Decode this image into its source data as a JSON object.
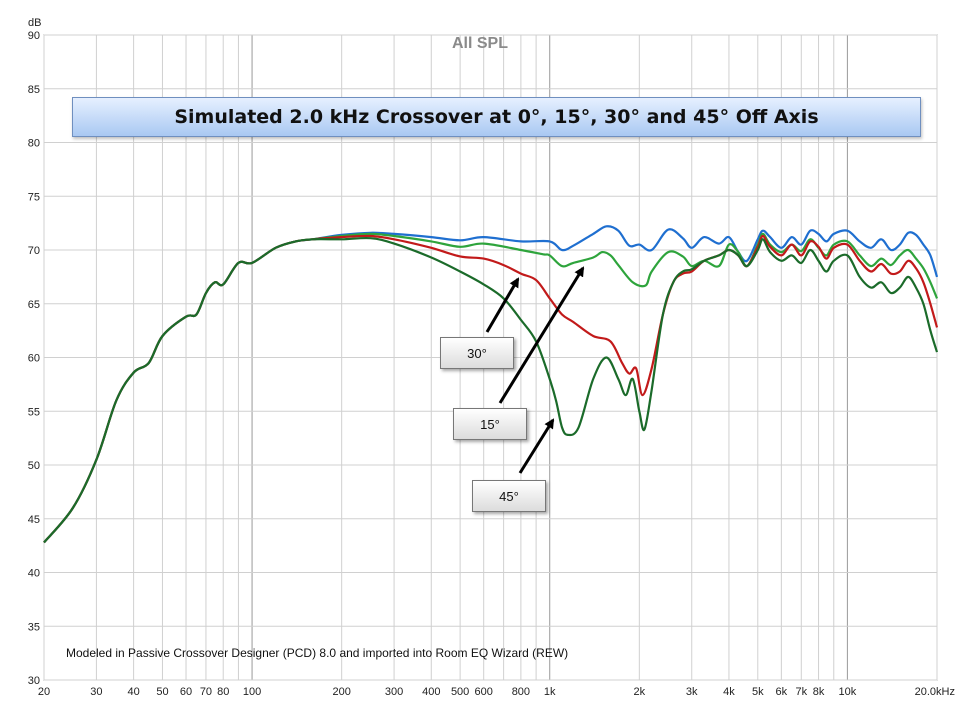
{
  "chart_data": {
    "type": "line",
    "title": "All SPL",
    "subtitle": "Simulated 2.0 kHz Crossover at 0°, 15°, 30° and 45° Off Axis",
    "ylabel": "dB",
    "xlabel": "",
    "xscale": "log",
    "xlim": [
      20,
      20000
    ],
    "ylim": [
      30,
      90
    ],
    "y_ticks": [
      "30",
      "35",
      "40",
      "45",
      "50",
      "55",
      "60",
      "65",
      "70",
      "75",
      "80",
      "85",
      "90"
    ],
    "x_ticks": [
      {
        "value": 20,
        "label": "20"
      },
      {
        "value": 30,
        "label": "30"
      },
      {
        "value": 40,
        "label": "40"
      },
      {
        "value": 50,
        "label": "50"
      },
      {
        "value": 60,
        "label": "60"
      },
      {
        "value": 70,
        "label": "70"
      },
      {
        "value": 80,
        "label": "80"
      },
      {
        "value": 100,
        "label": "100"
      },
      {
        "value": 200,
        "label": "200"
      },
      {
        "value": 300,
        "label": "300"
      },
      {
        "value": 400,
        "label": "400"
      },
      {
        "value": 500,
        "label": "500"
      },
      {
        "value": 600,
        "label": "600"
      },
      {
        "value": 800,
        "label": "800"
      },
      {
        "value": 1000,
        "label": "1k"
      },
      {
        "value": 2000,
        "label": "2k"
      },
      {
        "value": 3000,
        "label": "3k"
      },
      {
        "value": 4000,
        "label": "4k"
      },
      {
        "value": 5000,
        "label": "5k"
      },
      {
        "value": 6000,
        "label": "6k"
      },
      {
        "value": 7000,
        "label": "7k"
      },
      {
        "value": 8000,
        "label": "8k"
      },
      {
        "value": 10000,
        "label": "10k"
      },
      {
        "value": 20000,
        "label": "20.0kHz"
      }
    ],
    "grid": true,
    "annotations": [
      "30°",
      "15°",
      "45°"
    ],
    "footnote": "Modeled in Passive Crossover  Designer (PCD) 8.0 and imported into Room EQ Wizard (REW)",
    "series": [
      {
        "name": "0°",
        "color": "#1f6fd0",
        "points": [
          [
            20,
            42.8
          ],
          [
            25,
            46
          ],
          [
            30,
            50.5
          ],
          [
            35,
            56
          ],
          [
            40,
            58.6
          ],
          [
            45,
            59.5
          ],
          [
            50,
            62
          ],
          [
            60,
            63.8
          ],
          [
            65,
            64
          ],
          [
            70,
            66
          ],
          [
            75,
            67
          ],
          [
            80,
            66.8
          ],
          [
            90,
            68.8
          ],
          [
            100,
            68.8
          ],
          [
            120,
            70.2
          ],
          [
            140,
            70.8
          ],
          [
            160,
            71.0
          ],
          [
            200,
            71.4
          ],
          [
            250,
            71.6
          ],
          [
            300,
            71.5
          ],
          [
            400,
            71.2
          ],
          [
            500,
            70.9
          ],
          [
            600,
            71.2
          ],
          [
            800,
            70.8
          ],
          [
            1000,
            70.8
          ],
          [
            1100,
            70.0
          ],
          [
            1200,
            70.4
          ],
          [
            1400,
            71.5
          ],
          [
            1550,
            72.2
          ],
          [
            1700,
            71.8
          ],
          [
            1850,
            70.4
          ],
          [
            2000,
            70.5
          ],
          [
            2200,
            70.0
          ],
          [
            2500,
            71.9
          ],
          [
            2800,
            71.1
          ],
          [
            3000,
            70.2
          ],
          [
            3300,
            71.2
          ],
          [
            3700,
            70.6
          ],
          [
            4000,
            71.2
          ],
          [
            4300,
            69.8
          ],
          [
            4600,
            69.0
          ],
          [
            5000,
            71.0
          ],
          [
            5200,
            71.8
          ],
          [
            5500,
            71.2
          ],
          [
            6000,
            70.2
          ],
          [
            6500,
            71.2
          ],
          [
            7000,
            70.5
          ],
          [
            7500,
            71.8
          ],
          [
            8000,
            71.5
          ],
          [
            8500,
            70.8
          ],
          [
            9000,
            71.5
          ],
          [
            10000,
            71.8
          ],
          [
            11000,
            70.8
          ],
          [
            12000,
            70.2
          ],
          [
            13000,
            71.0
          ],
          [
            14000,
            70.0
          ],
          [
            15000,
            70.5
          ],
          [
            16000,
            71.6
          ],
          [
            17000,
            71.4
          ],
          [
            18000,
            70.5
          ],
          [
            19000,
            69.5
          ],
          [
            20000,
            67.5
          ]
        ]
      },
      {
        "name": "15°",
        "color": "#2ea43c",
        "points": [
          [
            20,
            42.8
          ],
          [
            25,
            46
          ],
          [
            30,
            50.5
          ],
          [
            35,
            56
          ],
          [
            40,
            58.6
          ],
          [
            45,
            59.5
          ],
          [
            50,
            62
          ],
          [
            60,
            63.8
          ],
          [
            65,
            64
          ],
          [
            70,
            66
          ],
          [
            75,
            67
          ],
          [
            80,
            66.8
          ],
          [
            90,
            68.8
          ],
          [
            100,
            68.8
          ],
          [
            120,
            70.2
          ],
          [
            140,
            70.8
          ],
          [
            160,
            71.0
          ],
          [
            200,
            71.3
          ],
          [
            250,
            71.5
          ],
          [
            300,
            71.3
          ],
          [
            400,
            70.8
          ],
          [
            500,
            70.3
          ],
          [
            600,
            70.6
          ],
          [
            800,
            70.0
          ],
          [
            950,
            69.6
          ],
          [
            1000,
            69.5
          ],
          [
            1100,
            68.5
          ],
          [
            1200,
            68.8
          ],
          [
            1400,
            69.3
          ],
          [
            1500,
            69.8
          ],
          [
            1600,
            69.5
          ],
          [
            1700,
            68.6
          ],
          [
            1900,
            67.0
          ],
          [
            2100,
            66.7
          ],
          [
            2200,
            68.0
          ],
          [
            2500,
            69.8
          ],
          [
            2800,
            69.4
          ],
          [
            3000,
            68.5
          ],
          [
            3300,
            69.0
          ],
          [
            3700,
            68.5
          ],
          [
            4000,
            70.5
          ],
          [
            4300,
            69.8
          ],
          [
            4600,
            68.5
          ],
          [
            5000,
            70.5
          ],
          [
            5200,
            71.5
          ],
          [
            5500,
            70.5
          ],
          [
            6000,
            69.8
          ],
          [
            6500,
            70.5
          ],
          [
            7000,
            69.9
          ],
          [
            7500,
            71.0
          ],
          [
            8000,
            70.2
          ],
          [
            8500,
            69.5
          ],
          [
            9000,
            70.5
          ],
          [
            10000,
            70.8
          ],
          [
            11000,
            69.5
          ],
          [
            12000,
            68.5
          ],
          [
            13000,
            69.2
          ],
          [
            14000,
            68.6
          ],
          [
            15000,
            69.5
          ],
          [
            16000,
            70.0
          ],
          [
            17000,
            69.2
          ],
          [
            18000,
            68.3
          ],
          [
            19000,
            67.0
          ],
          [
            20000,
            65.5
          ]
        ]
      },
      {
        "name": "30°",
        "color": "#c21a1a",
        "points": [
          [
            20,
            42.8
          ],
          [
            25,
            46
          ],
          [
            30,
            50.5
          ],
          [
            35,
            56
          ],
          [
            40,
            58.6
          ],
          [
            45,
            59.5
          ],
          [
            50,
            62
          ],
          [
            60,
            63.8
          ],
          [
            65,
            64
          ],
          [
            70,
            66
          ],
          [
            75,
            67
          ],
          [
            80,
            66.8
          ],
          [
            90,
            68.8
          ],
          [
            100,
            68.8
          ],
          [
            120,
            70.2
          ],
          [
            140,
            70.8
          ],
          [
            160,
            71.0
          ],
          [
            200,
            71.2
          ],
          [
            250,
            71.3
          ],
          [
            300,
            71.0
          ],
          [
            400,
            70.2
          ],
          [
            500,
            69.4
          ],
          [
            600,
            69.2
          ],
          [
            700,
            68.6
          ],
          [
            800,
            67.8
          ],
          [
            900,
            67.2
          ],
          [
            1000,
            65.5
          ],
          [
            1100,
            64.0
          ],
          [
            1200,
            63.3
          ],
          [
            1400,
            62.0
          ],
          [
            1600,
            61.5
          ],
          [
            1750,
            59.5
          ],
          [
            1850,
            58.5
          ],
          [
            1950,
            59.0
          ],
          [
            2050,
            56.5
          ],
          [
            2200,
            59.0
          ],
          [
            2400,
            64.0
          ],
          [
            2600,
            67.0
          ],
          [
            2800,
            67.8
          ],
          [
            3000,
            68.0
          ],
          [
            3300,
            69.0
          ],
          [
            3700,
            69.5
          ],
          [
            4000,
            70.0
          ],
          [
            4300,
            69.5
          ],
          [
            4600,
            68.5
          ],
          [
            5000,
            70.3
          ],
          [
            5200,
            71.3
          ],
          [
            5500,
            70.3
          ],
          [
            6000,
            69.5
          ],
          [
            6500,
            70.5
          ],
          [
            7000,
            69.5
          ],
          [
            7500,
            70.8
          ],
          [
            8000,
            70.3
          ],
          [
            8500,
            69.2
          ],
          [
            9000,
            70.2
          ],
          [
            10000,
            70.5
          ],
          [
            11000,
            69.0
          ],
          [
            12000,
            68.0
          ],
          [
            13000,
            68.7
          ],
          [
            14000,
            67.8
          ],
          [
            15000,
            68.0
          ],
          [
            16000,
            69.0
          ],
          [
            17000,
            68.3
          ],
          [
            18000,
            67.0
          ],
          [
            19000,
            65.0
          ],
          [
            20000,
            62.8
          ]
        ]
      },
      {
        "name": "45°",
        "color": "#1b6b2a",
        "points": [
          [
            20,
            42.8
          ],
          [
            25,
            46
          ],
          [
            30,
            50.5
          ],
          [
            35,
            56
          ],
          [
            40,
            58.6
          ],
          [
            45,
            59.5
          ],
          [
            50,
            62
          ],
          [
            60,
            63.8
          ],
          [
            65,
            64
          ],
          [
            70,
            66
          ],
          [
            75,
            67
          ],
          [
            80,
            66.8
          ],
          [
            90,
            68.8
          ],
          [
            100,
            68.8
          ],
          [
            120,
            70.2
          ],
          [
            140,
            70.8
          ],
          [
            160,
            71.0
          ],
          [
            200,
            71.0
          ],
          [
            250,
            71.1
          ],
          [
            300,
            70.6
          ],
          [
            400,
            69.3
          ],
          [
            500,
            68.0
          ],
          [
            600,
            66.8
          ],
          [
            700,
            65.5
          ],
          [
            800,
            63.5
          ],
          [
            900,
            61.5
          ],
          [
            1000,
            58.0
          ],
          [
            1050,
            56.0
          ],
          [
            1100,
            53.5
          ],
          [
            1150,
            52.8
          ],
          [
            1250,
            53.5
          ],
          [
            1400,
            58.0
          ],
          [
            1550,
            60.0
          ],
          [
            1700,
            58.0
          ],
          [
            1800,
            56.5
          ],
          [
            1900,
            58.0
          ],
          [
            2000,
            55.0
          ],
          [
            2080,
            53.3
          ],
          [
            2200,
            57.0
          ],
          [
            2400,
            64.0
          ],
          [
            2600,
            67.0
          ],
          [
            2800,
            68.0
          ],
          [
            3000,
            68.2
          ],
          [
            3300,
            69.0
          ],
          [
            3700,
            69.5
          ],
          [
            4000,
            70.0
          ],
          [
            4300,
            69.5
          ],
          [
            4600,
            68.5
          ],
          [
            5000,
            70.0
          ],
          [
            5200,
            71.0
          ],
          [
            5500,
            69.8
          ],
          [
            6000,
            69.0
          ],
          [
            6500,
            69.5
          ],
          [
            7000,
            68.8
          ],
          [
            7500,
            70.0
          ],
          [
            8000,
            69.0
          ],
          [
            8500,
            68.0
          ],
          [
            9000,
            69.0
          ],
          [
            10000,
            69.5
          ],
          [
            11000,
            67.5
          ],
          [
            12000,
            66.5
          ],
          [
            13000,
            67.0
          ],
          [
            14000,
            66.0
          ],
          [
            15000,
            66.5
          ],
          [
            16000,
            67.5
          ],
          [
            17000,
            66.5
          ],
          [
            18000,
            65.0
          ],
          [
            19000,
            62.5
          ],
          [
            20000,
            60.5
          ]
        ]
      }
    ]
  }
}
